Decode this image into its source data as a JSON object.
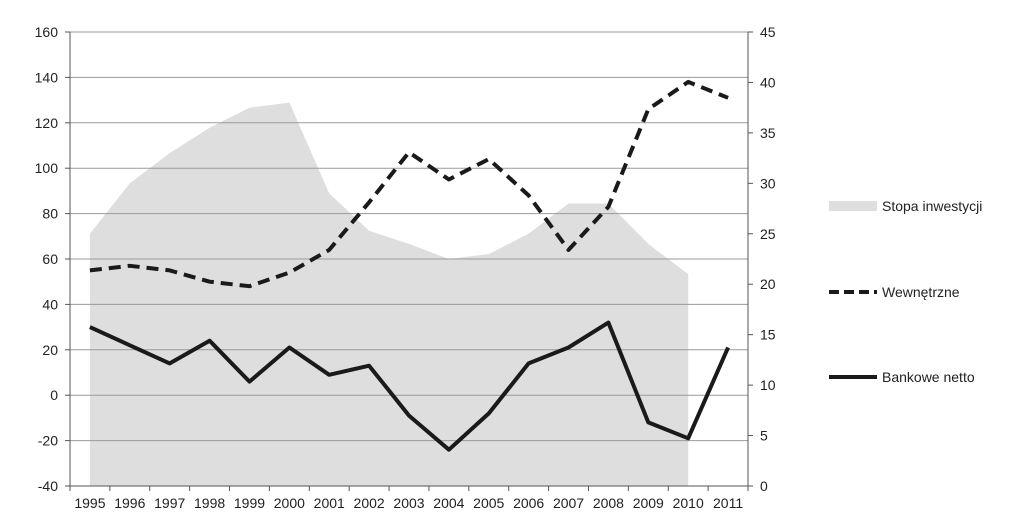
{
  "chart_data": {
    "type": "line",
    "title": "",
    "xlabel": "",
    "ylabel": "",
    "categories": [
      "1995",
      "1996",
      "1997",
      "1998",
      "1999",
      "2000",
      "2001",
      "2002",
      "2003",
      "2004",
      "2005",
      "2006",
      "2007",
      "2008",
      "2009",
      "2010",
      "2011"
    ],
    "ylim_left": [
      -40,
      160
    ],
    "ylim_right": [
      0,
      45
    ],
    "yticks_left": [
      "-40",
      "-20",
      "0",
      "20",
      "40",
      "60",
      "80",
      "100",
      "120",
      "140",
      "160"
    ],
    "yticks_right": [
      "0",
      "5",
      "10",
      "15",
      "20",
      "25",
      "30",
      "35",
      "40",
      "45"
    ],
    "grid": "horizontal",
    "legend_position": "right",
    "series": [
      {
        "name": "Stopa inwestycji",
        "style": "area",
        "axis": "right",
        "color": "#dedede",
        "values": [
          25,
          30,
          33,
          35.5,
          37.5,
          38,
          29,
          25.3,
          24,
          22.5,
          23,
          25,
          28,
          28,
          24,
          21,
          null
        ]
      },
      {
        "name": "Wewnętrzne",
        "style": "dashed",
        "axis": "left",
        "color": "#1a1a1a",
        "values": [
          55,
          57,
          55,
          50,
          48,
          54,
          64,
          85,
          107,
          95,
          104,
          88,
          64,
          83,
          126,
          138,
          131
        ]
      },
      {
        "name": "Bankowe netto",
        "style": "solid",
        "axis": "left",
        "color": "#1a1a1a",
        "values": [
          30,
          22,
          14,
          24,
          6,
          21,
          9,
          13,
          -9,
          -24,
          -8,
          14,
          21,
          32,
          -12,
          -19,
          21
        ]
      }
    ]
  }
}
